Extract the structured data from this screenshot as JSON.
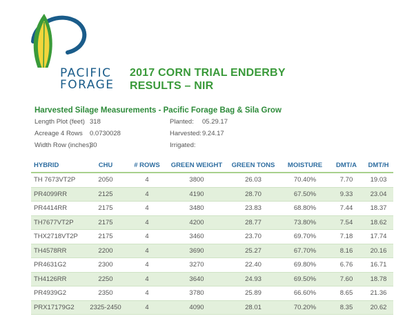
{
  "logo": {
    "word1": "PACIFIC",
    "word2": "FORAGE"
  },
  "title": {
    "line1": "2017 CORN TRIAL ENDERBY",
    "line2": "RESULTS – NIR"
  },
  "subtitle": "Harvested Silage Measurements - Pacific Forage Bag & Sila Grow",
  "meta": {
    "length_label": "Length Plot (feet)",
    "length_value": "318",
    "acreage_label": "Acreage 4 Rows",
    "acreage_value": "0.0730028",
    "width_label": "Width Row (inches)",
    "width_value": "30",
    "planted_label": "Planted:",
    "planted_value": "05.29.17",
    "harvested_label": "Harvested:",
    "harvested_value": "9.24.17",
    "irrigated_label": "Irrigated:"
  },
  "table": {
    "headers": [
      "HYBRID",
      "CHU",
      "# ROWS",
      "GREEN WEIGHT",
      "GREEN TONS",
      "MOISTURE",
      "DMT/A",
      "DMT/H"
    ],
    "rows": [
      [
        "TH 7673VT2P",
        "2050",
        "4",
        "3800",
        "26.03",
        "70.40%",
        "7.70",
        "19.03"
      ],
      [
        "PR4099RR",
        "2125",
        "4",
        "4190",
        "28.70",
        "67.50%",
        "9.33",
        "23.04"
      ],
      [
        "PR4414RR",
        "2175",
        "4",
        "3480",
        "23.83",
        "68.80%",
        "7.44",
        "18.37"
      ],
      [
        "TH7677VT2P",
        "2175",
        "4",
        "4200",
        "28.77",
        "73.80%",
        "7.54",
        "18.62"
      ],
      [
        "THX2718VT2P",
        "2175",
        "4",
        "3460",
        "23.70",
        "69.70%",
        "7.18",
        "17.74"
      ],
      [
        "TH4578RR",
        "2200",
        "4",
        "3690",
        "25.27",
        "67.70%",
        "8.16",
        "20.16"
      ],
      [
        "PR4631G2",
        "2300",
        "4",
        "3270",
        "22.40",
        "69.80%",
        "6.76",
        "16.71"
      ],
      [
        "TH4126RR",
        "2250",
        "4",
        "3640",
        "24.93",
        "69.50%",
        "7.60",
        "18.78"
      ],
      [
        "PR4939G2",
        "2350",
        "4",
        "3780",
        "25.89",
        "66.60%",
        "8.65",
        "21.36"
      ],
      [
        "PRX17179G2",
        "2325-2450",
        "4",
        "4090",
        "28.01",
        "70.20%",
        "8.35",
        "20.62"
      ]
    ]
  },
  "colors": {
    "brand_blue": "#1a5c8a",
    "brand_green": "#3a9a3a",
    "brand_yellow": "#f2d53c",
    "row_band": "#e3f0dc"
  }
}
